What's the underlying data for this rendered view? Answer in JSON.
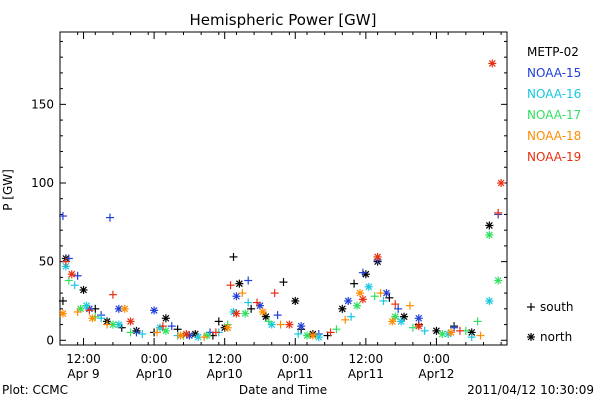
{
  "chart_data": {
    "type": "scatter",
    "title": "Hemispheric Power [GW]",
    "xlabel": "Date and Time",
    "ylabel": "P [GW]",
    "ylim": [
      -3,
      196
    ],
    "xlim": [
      "2011-04-09 08:00",
      "2011-04-12 12:00"
    ],
    "yticks": [
      0,
      50,
      100,
      150
    ],
    "xticks": [
      {
        "t": "2011-04-09 12:00",
        "line1": "12:00",
        "line2": "Apr 9"
      },
      {
        "t": "2011-04-10 00:00",
        "line1": "0:00",
        "line2": "Apr10"
      },
      {
        "t": "2011-04-10 12:00",
        "line1": "12:00",
        "line2": "Apr10"
      },
      {
        "t": "2011-04-11 00:00",
        "line1": "0:00",
        "line2": "Apr11"
      },
      {
        "t": "2011-04-11 12:00",
        "line1": "12:00",
        "line2": "Apr11"
      },
      {
        "t": "2011-04-12 00:00",
        "line1": "0:00",
        "line2": "Apr12"
      }
    ],
    "grid": false,
    "legend_position": "right",
    "marker_legend": [
      {
        "symbol": "+",
        "label": "south"
      },
      {
        "symbol": "*",
        "label": "north"
      }
    ],
    "series": [
      {
        "name": "METP-02",
        "color": "#000000",
        "points": [
          [
            "2011-04-09 08:30",
            25,
            "+"
          ],
          [
            "2011-04-09 09:00",
            52,
            "*"
          ],
          [
            "2011-04-09 12:00",
            32,
            "*"
          ],
          [
            "2011-04-09 14:00",
            20,
            "+"
          ],
          [
            "2011-04-09 16:00",
            12,
            "*"
          ],
          [
            "2011-04-09 18:30",
            8,
            "+"
          ],
          [
            "2011-04-09 21:00",
            6,
            "*"
          ],
          [
            "2011-04-10 00:00",
            5,
            "+"
          ],
          [
            "2011-04-10 02:00",
            14,
            "*"
          ],
          [
            "2011-04-10 04:00",
            7,
            "+"
          ],
          [
            "2011-04-10 07:00",
            4,
            "*"
          ],
          [
            "2011-04-10 10:00",
            3,
            "+"
          ],
          [
            "2011-04-10 11:00",
            12,
            "+"
          ],
          [
            "2011-04-10 12:00",
            8,
            "*"
          ],
          [
            "2011-04-10 13:30",
            53,
            "+"
          ],
          [
            "2011-04-10 14:30",
            36,
            "*"
          ],
          [
            "2011-04-10 16:30",
            20,
            "+"
          ],
          [
            "2011-04-10 19:00",
            15,
            "*"
          ],
          [
            "2011-04-10 22:00",
            37,
            "+"
          ],
          [
            "2011-04-11 00:00",
            25,
            "*"
          ],
          [
            "2011-04-11 01:00",
            7,
            "+"
          ],
          [
            "2011-04-11 03:00",
            4,
            "*"
          ],
          [
            "2011-04-11 05:30",
            3,
            "+"
          ],
          [
            "2011-04-11 08:00",
            20,
            "*"
          ],
          [
            "2011-04-11 10:00",
            36,
            "+"
          ],
          [
            "2011-04-11 12:00",
            42,
            "*"
          ],
          [
            "2011-04-11 14:00",
            50,
            "*"
          ],
          [
            "2011-04-11 16:00",
            27,
            "+"
          ],
          [
            "2011-04-11 18:30",
            15,
            "*"
          ],
          [
            "2011-04-11 21:00",
            10,
            "+"
          ],
          [
            "2011-04-12 00:00",
            6,
            "*"
          ],
          [
            "2011-04-12 03:00",
            9,
            "+"
          ],
          [
            "2011-04-12 06:00",
            5,
            "*"
          ],
          [
            "2011-04-12 09:00",
            73,
            "*"
          ]
        ]
      },
      {
        "name": "NOAA-15",
        "color": "#1f3fd8",
        "points": [
          [
            "2011-04-09 08:30",
            79,
            "+"
          ],
          [
            "2011-04-09 09:30",
            52,
            "+"
          ],
          [
            "2011-04-09 11:00",
            41,
            "+"
          ],
          [
            "2011-04-09 13:00",
            20,
            "*"
          ],
          [
            "2011-04-09 15:00",
            16,
            "+"
          ],
          [
            "2011-04-09 16:30",
            78,
            "+"
          ],
          [
            "2011-04-09 18:00",
            20,
            "*"
          ],
          [
            "2011-04-09 21:00",
            5,
            "+"
          ],
          [
            "2011-04-10 00:00",
            19,
            "*"
          ],
          [
            "2011-04-10 03:00",
            9,
            "+"
          ],
          [
            "2011-04-10 06:00",
            3,
            "*"
          ],
          [
            "2011-04-10 09:30",
            5,
            "+"
          ],
          [
            "2011-04-10 14:00",
            28,
            "*"
          ],
          [
            "2011-04-10 16:00",
            38,
            "+"
          ],
          [
            "2011-04-10 18:00",
            22,
            "*"
          ],
          [
            "2011-04-10 21:00",
            16,
            "+"
          ],
          [
            "2011-04-11 01:00",
            9,
            "*"
          ],
          [
            "2011-04-11 04:00",
            4,
            "+"
          ],
          [
            "2011-04-11 09:00",
            25,
            "*"
          ],
          [
            "2011-04-11 11:30",
            43,
            "+"
          ],
          [
            "2011-04-11 14:00",
            51,
            "+"
          ],
          [
            "2011-04-11 15:30",
            30,
            "*"
          ],
          [
            "2011-04-11 17:30",
            20,
            "+"
          ],
          [
            "2011-04-11 21:00",
            14,
            "*"
          ],
          [
            "2011-04-12 03:00",
            8,
            "+"
          ],
          [
            "2011-04-12 10:30",
            80,
            "+"
          ]
        ]
      },
      {
        "name": "NOAA-16",
        "color": "#18c8e0",
        "points": [
          [
            "2011-04-09 09:00",
            47,
            "*"
          ],
          [
            "2011-04-09 10:30",
            35,
            "+"
          ],
          [
            "2011-04-09 12:30",
            22,
            "*"
          ],
          [
            "2011-04-09 15:00",
            14,
            "+"
          ],
          [
            "2011-04-09 18:00",
            10,
            "*"
          ],
          [
            "2011-04-09 22:00",
            4,
            "+"
          ],
          [
            "2011-04-10 01:00",
            8,
            "*"
          ],
          [
            "2011-04-10 04:00",
            3,
            "+"
          ],
          [
            "2011-04-10 07:30",
            2,
            "*"
          ],
          [
            "2011-04-10 11:00",
            5,
            "+"
          ],
          [
            "2011-04-10 13:30",
            18,
            "*"
          ],
          [
            "2011-04-10 16:00",
            24,
            "+"
          ],
          [
            "2011-04-10 20:00",
            10,
            "*"
          ],
          [
            "2011-04-11 00:30",
            4,
            "+"
          ],
          [
            "2011-04-11 04:00",
            2,
            "*"
          ],
          [
            "2011-04-11 09:30",
            15,
            "+"
          ],
          [
            "2011-04-11 12:30",
            34,
            "*"
          ],
          [
            "2011-04-11 15:00",
            25,
            "+"
          ],
          [
            "2011-04-11 18:00",
            12,
            "*"
          ],
          [
            "2011-04-11 22:00",
            6,
            "+"
          ],
          [
            "2011-04-12 02:00",
            4,
            "*"
          ],
          [
            "2011-04-12 06:00",
            2,
            "+"
          ],
          [
            "2011-04-12 09:00",
            25,
            "*"
          ]
        ]
      },
      {
        "name": "NOAA-17",
        "color": "#30e060",
        "points": [
          [
            "2011-04-09 09:30",
            38,
            "+"
          ],
          [
            "2011-04-09 11:30",
            20,
            "*"
          ],
          [
            "2011-04-09 14:00",
            15,
            "+"
          ],
          [
            "2011-04-09 17:00",
            10,
            "*"
          ],
          [
            "2011-04-09 20:00",
            5,
            "+"
          ],
          [
            "2011-04-10 02:00",
            6,
            "*"
          ],
          [
            "2011-04-10 05:00",
            3,
            "+"
          ],
          [
            "2011-04-10 09:00",
            3,
            "*"
          ],
          [
            "2011-04-10 12:30",
            10,
            "+"
          ],
          [
            "2011-04-10 15:30",
            17,
            "*"
          ],
          [
            "2011-04-10 19:30",
            12,
            "+"
          ],
          [
            "2011-04-11 02:00",
            3,
            "*"
          ],
          [
            "2011-04-11 07:00",
            7,
            "+"
          ],
          [
            "2011-04-11 10:30",
            22,
            "*"
          ],
          [
            "2011-04-11 13:30",
            28,
            "+"
          ],
          [
            "2011-04-11 17:00",
            15,
            "*"
          ],
          [
            "2011-04-11 20:00",
            8,
            "+"
          ],
          [
            "2011-04-12 01:00",
            4,
            "*"
          ],
          [
            "2011-04-12 05:00",
            6,
            "+"
          ],
          [
            "2011-04-12 07:00",
            12,
            "+"
          ],
          [
            "2011-04-12 09:00",
            67,
            "*"
          ],
          [
            "2011-04-12 10:30",
            38,
            "*"
          ]
        ]
      },
      {
        "name": "NOAA-18",
        "color": "#ff8c00",
        "points": [
          [
            "2011-04-09 08:30",
            17,
            "*"
          ],
          [
            "2011-04-09 11:00",
            18,
            "+"
          ],
          [
            "2011-04-09 13:30",
            14,
            "*"
          ],
          [
            "2011-04-09 16:00",
            10,
            "+"
          ],
          [
            "2011-04-09 19:00",
            20,
            "*"
          ],
          [
            "2011-04-10 00:30",
            5,
            "+"
          ],
          [
            "2011-04-10 04:30",
            3,
            "*"
          ],
          [
            "2011-04-10 08:30",
            2,
            "+"
          ],
          [
            "2011-04-10 12:30",
            8,
            "*"
          ],
          [
            "2011-04-10 15:00",
            30,
            "+"
          ],
          [
            "2011-04-10 18:30",
            18,
            "*"
          ],
          [
            "2011-04-10 21:30",
            10,
            "+"
          ],
          [
            "2011-04-11 03:00",
            3,
            "*"
          ],
          [
            "2011-04-11 08:30",
            13,
            "+"
          ],
          [
            "2011-04-11 11:00",
            30,
            "*"
          ],
          [
            "2011-04-11 14:30",
            30,
            "+"
          ],
          [
            "2011-04-11 16:30",
            12,
            "*"
          ],
          [
            "2011-04-11 19:30",
            22,
            "+"
          ],
          [
            "2011-04-12 02:30",
            5,
            "*"
          ],
          [
            "2011-04-12 07:30",
            3,
            "+"
          ]
        ]
      },
      {
        "name": "NOAA-19",
        "color": "#e83010",
        "points": [
          [
            "2011-04-09 09:00",
            50,
            "+"
          ],
          [
            "2011-04-09 10:00",
            42,
            "*"
          ],
          [
            "2011-04-09 13:00",
            19,
            "+"
          ],
          [
            "2011-04-09 17:00",
            29,
            "+"
          ],
          [
            "2011-04-09 20:00",
            12,
            "*"
          ],
          [
            "2011-04-10 01:30",
            9,
            "+"
          ],
          [
            "2011-04-10 05:30",
            4,
            "*"
          ],
          [
            "2011-04-10 10:30",
            5,
            "+"
          ],
          [
            "2011-04-10 13:00",
            35,
            "+"
          ],
          [
            "2011-04-10 14:00",
            17,
            "*"
          ],
          [
            "2011-04-10 17:30",
            24,
            "+"
          ],
          [
            "2011-04-10 20:30",
            30,
            "+"
          ],
          [
            "2011-04-10 23:00",
            10,
            "*"
          ],
          [
            "2011-04-11 06:00",
            5,
            "+"
          ],
          [
            "2011-04-11 11:30",
            26,
            "*"
          ],
          [
            "2011-04-11 14:00",
            53,
            "*"
          ],
          [
            "2011-04-11 17:00",
            23,
            "+"
          ],
          [
            "2011-04-11 21:00",
            9,
            "*"
          ],
          [
            "2011-04-12 04:00",
            6,
            "+"
          ],
          [
            "2011-04-12 09:30",
            176,
            "*"
          ],
          [
            "2011-04-12 10:30",
            81,
            "+"
          ],
          [
            "2011-04-12 11:00",
            100,
            "*"
          ]
        ]
      }
    ]
  },
  "footer": {
    "plot_credit": "Plot: CCMC",
    "timestamp": "2011/04/12 10:30:09"
  }
}
